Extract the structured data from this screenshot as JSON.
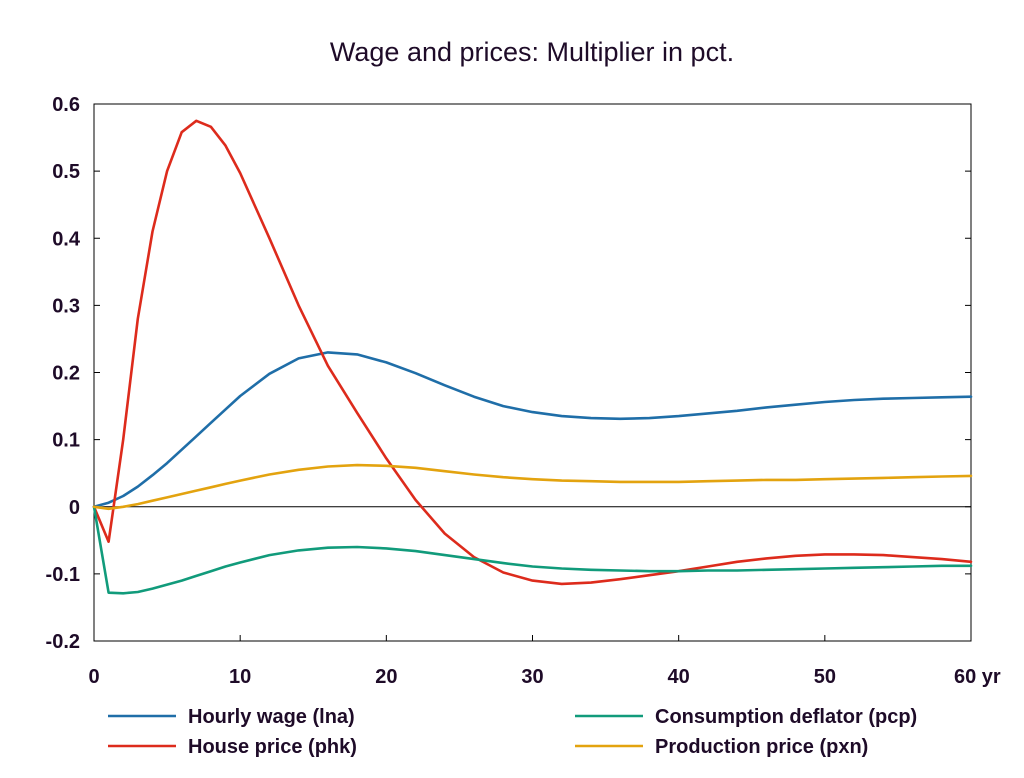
{
  "chart_data": {
    "type": "line",
    "title": "Wage and prices: Multiplier in pct.",
    "xlabel": "",
    "ylabel": "",
    "xlim": [
      0,
      60
    ],
    "ylim": [
      -0.2,
      0.6
    ],
    "x_ticks": [
      0,
      10,
      20,
      30,
      40,
      50,
      60
    ],
    "x_tick_labels": [
      "0",
      "10",
      "20",
      "30",
      "40",
      "50",
      "60 yr"
    ],
    "y_ticks": [
      -0.2,
      -0.1,
      0,
      0.1,
      0.2,
      0.3,
      0.4,
      0.5,
      0.6
    ],
    "y_tick_labels": [
      "-0.2",
      "-0.1",
      "0",
      "0.1",
      "0.2",
      "0.3",
      "0.4",
      "0.5",
      "0.6"
    ],
    "grid": false,
    "zero_line": true,
    "legend_position": "bottom",
    "x": [
      0,
      1,
      2,
      3,
      4,
      5,
      6,
      7,
      8,
      9,
      10,
      12,
      14,
      16,
      18,
      20,
      22,
      24,
      26,
      28,
      30,
      32,
      34,
      36,
      38,
      40,
      42,
      44,
      46,
      48,
      50,
      52,
      54,
      56,
      58,
      60
    ],
    "series": [
      {
        "name": "Hourly wage (lna)",
        "color": "#1f6ea8",
        "values": [
          0,
          0.006,
          0.016,
          0.03,
          0.047,
          0.065,
          0.085,
          0.105,
          0.125,
          0.145,
          0.165,
          0.198,
          0.221,
          0.23,
          0.227,
          0.215,
          0.199,
          0.181,
          0.164,
          0.15,
          0.141,
          0.135,
          0.132,
          0.131,
          0.132,
          0.135,
          0.139,
          0.143,
          0.148,
          0.152,
          0.156,
          0.159,
          0.161,
          0.162,
          0.163,
          0.164
        ]
      },
      {
        "name": "House price (phk)",
        "color": "#dd2b1c",
        "values": [
          0,
          -0.052,
          0.1,
          0.28,
          0.41,
          0.5,
          0.558,
          0.575,
          0.566,
          0.538,
          0.497,
          0.4,
          0.3,
          0.21,
          0.14,
          0.072,
          0.01,
          -0.04,
          -0.075,
          -0.098,
          -0.11,
          -0.115,
          -0.113,
          -0.108,
          -0.102,
          -0.096,
          -0.089,
          -0.082,
          -0.077,
          -0.073,
          -0.071,
          -0.071,
          -0.072,
          -0.075,
          -0.078,
          -0.082
        ]
      },
      {
        "name": "Consumption deflator (pcp)",
        "color": "#119b7b",
        "values": [
          0,
          -0.128,
          -0.129,
          -0.127,
          -0.122,
          -0.116,
          -0.11,
          -0.103,
          -0.096,
          -0.089,
          -0.083,
          -0.072,
          -0.065,
          -0.061,
          -0.06,
          -0.062,
          -0.066,
          -0.072,
          -0.078,
          -0.084,
          -0.089,
          -0.092,
          -0.094,
          -0.095,
          -0.096,
          -0.096,
          -0.095,
          -0.095,
          -0.094,
          -0.093,
          -0.092,
          -0.091,
          -0.09,
          -0.089,
          -0.088,
          -0.088
        ]
      },
      {
        "name": "Production price (pxn)",
        "color": "#e3a30f",
        "values": [
          0,
          -0.003,
          0.0,
          0.004,
          0.009,
          0.014,
          0.019,
          0.024,
          0.029,
          0.034,
          0.039,
          0.048,
          0.055,
          0.06,
          0.062,
          0.061,
          0.058,
          0.053,
          0.048,
          0.044,
          0.041,
          0.039,
          0.038,
          0.037,
          0.037,
          0.037,
          0.038,
          0.039,
          0.04,
          0.04,
          0.041,
          0.042,
          0.043,
          0.044,
          0.045,
          0.046
        ]
      }
    ]
  }
}
